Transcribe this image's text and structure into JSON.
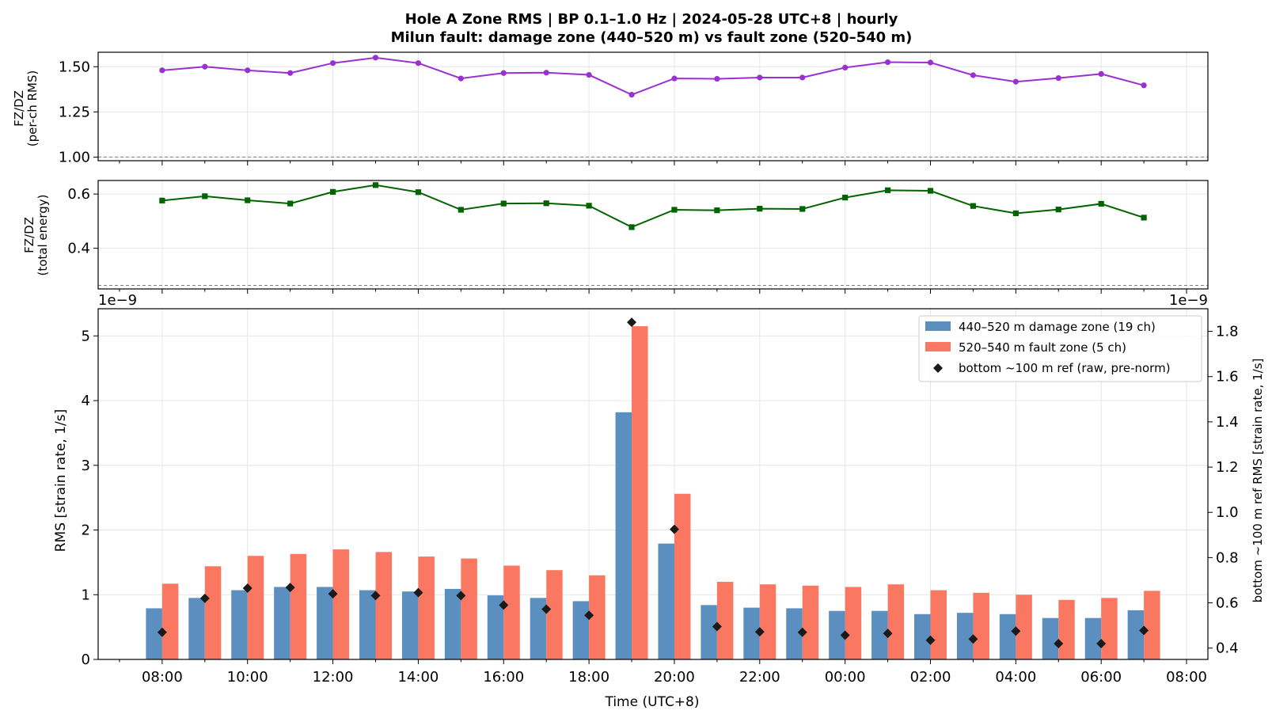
{
  "title": {
    "line1": "Hole A Zone RMS  |  BP 0.1–1.0 Hz  |  2024-05-28 UTC+8  |  hourly",
    "line2": "Milun fault: damage zone (440–520 m) vs fault zone (520–540 m)"
  },
  "colors": {
    "ratio_rms": "#9b30d0",
    "ratio_energy": "#006400",
    "damage_zone": "#5b8fbf",
    "fault_zone": "#fa7761",
    "bottom_ref": "#1a1a1a",
    "grid": "#e6e6e6",
    "refline": "#808080"
  },
  "x_axis": {
    "label": "Time (UTC+8)",
    "tick_labels": [
      "08:00",
      "10:00",
      "12:00",
      "14:00",
      "16:00",
      "18:00",
      "20:00",
      "22:00",
      "00:00",
      "02:00",
      "04:00",
      "06:00",
      "08:00"
    ],
    "range_hours": [
      -1.5,
      24.5
    ]
  },
  "hours": [
    "08:00",
    "09:00",
    "10:00",
    "11:00",
    "12:00",
    "13:00",
    "14:00",
    "15:00",
    "16:00",
    "17:00",
    "18:00",
    "19:00",
    "20:00",
    "21:00",
    "22:00",
    "23:00",
    "00:00",
    "01:00",
    "02:00",
    "03:00",
    "04:00",
    "05:00",
    "06:00",
    "07:00"
  ],
  "chart_data": [
    {
      "type": "line",
      "ylabel_line1": "FZ/DZ",
      "ylabel_line2": "(per-ch RMS)",
      "ylim": [
        0.98,
        1.58
      ],
      "yticks": [
        "1.00",
        "1.25",
        "1.50"
      ],
      "ytick_values": [
        1.0,
        1.25,
        1.5
      ],
      "reference_line": 1.0,
      "marker": "circle",
      "values": [
        1.48,
        1.5,
        1.48,
        1.465,
        1.52,
        1.55,
        1.52,
        1.435,
        1.465,
        1.467,
        1.455,
        1.345,
        1.435,
        1.433,
        1.44,
        1.44,
        1.495,
        1.525,
        1.523,
        1.453,
        1.417,
        1.437,
        1.46,
        1.397
      ]
    },
    {
      "type": "line",
      "ylabel_line1": "FZ/DZ",
      "ylabel_line2": "(total energy)",
      "ylim": [
        0.25,
        0.65
      ],
      "yticks": [
        "0.4",
        "0.6"
      ],
      "ytick_values": [
        0.4,
        0.6
      ],
      "reference_line": 0.263,
      "marker": "square",
      "values": [
        0.576,
        0.592,
        0.577,
        0.565,
        0.608,
        0.633,
        0.607,
        0.542,
        0.565,
        0.566,
        0.557,
        0.478,
        0.542,
        0.54,
        0.546,
        0.545,
        0.587,
        0.614,
        0.612,
        0.556,
        0.529,
        0.543,
        0.564,
        0.513
      ]
    },
    {
      "type": "bar",
      "ylabel": "RMS  [strain rate, 1/s]",
      "ylabel_right": "bottom ~100 m ref RMS  [strain rate, 1/s]",
      "scale_label_left": "1e−9",
      "scale_label_right": "1e−9",
      "ylim": [
        0,
        5.42
      ],
      "yticks": [
        "0",
        "1",
        "2",
        "3",
        "4",
        "5"
      ],
      "ytick_values": [
        0,
        1,
        2,
        3,
        4,
        5
      ],
      "ylim_right": [
        0.35,
        1.9
      ],
      "yticks_right": [
        "0.4",
        "0.6",
        "0.8",
        "1.0",
        "1.2",
        "1.4",
        "1.6",
        "1.8"
      ],
      "ytick_values_right": [
        0.4,
        0.6,
        0.8,
        1.0,
        1.2,
        1.4,
        1.6,
        1.8
      ],
      "legend_position": "top-right",
      "series": [
        {
          "name": "440–520 m  damage zone (19 ch)",
          "values": [
            0.79,
            0.95,
            1.07,
            1.12,
            1.12,
            1.07,
            1.05,
            1.09,
            0.99,
            0.95,
            0.9,
            3.82,
            1.79,
            0.84,
            0.8,
            0.79,
            0.75,
            0.75,
            0.7,
            0.72,
            0.7,
            0.64,
            0.64,
            0.76
          ]
        },
        {
          "name": "520–540 m  fault zone (5 ch)",
          "values": [
            1.17,
            1.44,
            1.6,
            1.63,
            1.7,
            1.66,
            1.59,
            1.56,
            1.45,
            1.38,
            1.3,
            5.15,
            2.56,
            1.2,
            1.16,
            1.14,
            1.12,
            1.16,
            1.07,
            1.03,
            1.0,
            0.92,
            0.95,
            1.06
          ]
        },
        {
          "name": "bottom ~100 m ref (raw, pre-norm)",
          "axis": "right",
          "values": [
            0.47,
            0.62,
            0.665,
            0.668,
            0.64,
            0.632,
            0.645,
            0.632,
            0.59,
            0.572,
            0.545,
            1.84,
            0.925,
            0.495,
            0.472,
            0.47,
            0.457,
            0.465,
            0.435,
            0.44,
            0.475,
            0.42,
            0.42,
            0.478
          ]
        }
      ]
    }
  ]
}
